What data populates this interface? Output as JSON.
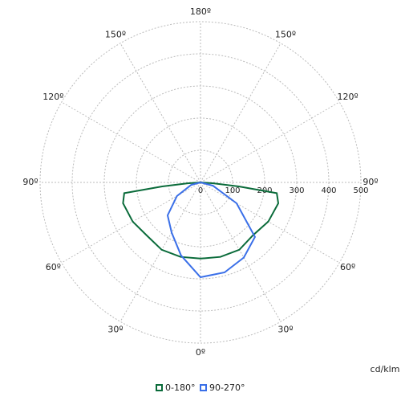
{
  "chart_data": {
    "type": "polar",
    "unit_label": "cd/klm",
    "rlim": [
      0,
      500
    ],
    "rticks": [
      0,
      100,
      200,
      300,
      400,
      500
    ],
    "thetaticks": [
      {
        "value": 180,
        "label": "180º"
      },
      {
        "value": -150,
        "label": "150º"
      },
      {
        "value": 150,
        "label": "150º"
      },
      {
        "value": -120,
        "label": "120º"
      },
      {
        "value": 120,
        "label": "120º"
      },
      {
        "value": -90,
        "label": "90º"
      },
      {
        "value": 90,
        "label": "90º"
      },
      {
        "value": -60,
        "label": "60º"
      },
      {
        "value": 60,
        "label": "60º"
      },
      {
        "value": -30,
        "label": "30º"
      },
      {
        "value": 30,
        "label": "30º"
      },
      {
        "value": 0,
        "label": "0º"
      }
    ],
    "grid": true,
    "series": [
      {
        "name": "0-180°",
        "color": "#0a6b3a",
        "theta": [
          -90,
          -86,
          -84,
          -82,
          -75,
          -60,
          -45,
          -30,
          -15,
          0,
          15,
          30,
          45,
          60,
          75,
          82,
          84,
          86,
          90
        ],
        "values": [
          0,
          40,
          120,
          240,
          250,
          244,
          235,
          242,
          240,
          237,
          240,
          242,
          232,
          244,
          251,
          240,
          120,
          40,
          0
        ]
      },
      {
        "name": "90-270°",
        "color": "#3a6fe8",
        "theta": [
          -90,
          -75,
          -60,
          -45,
          -30,
          -15,
          0,
          15,
          30,
          45,
          60,
          75,
          90
        ],
        "values": [
          0,
          30,
          85,
          145,
          180,
          235,
          295,
          290,
          270,
          240,
          130,
          40,
          0
        ]
      }
    ]
  }
}
